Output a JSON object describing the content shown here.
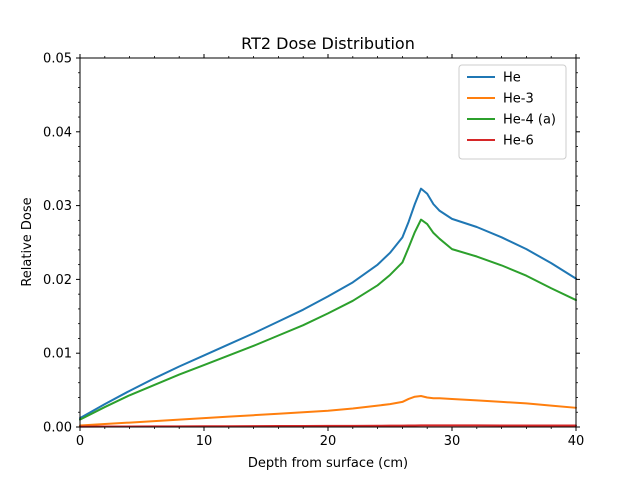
{
  "chart_data": {
    "type": "line",
    "title": "RT2 Dose Distribution",
    "xlabel": "Depth from surface (cm)",
    "ylabel": "Relative Dose",
    "xlim": [
      0,
      40
    ],
    "ylim": [
      0,
      0.05
    ],
    "x_ticks": [
      0,
      10,
      20,
      30,
      40
    ],
    "x_tick_labels": [
      "0",
      "10",
      "20",
      "30",
      "40"
    ],
    "y_ticks": [
      0,
      0.01,
      0.02,
      0.03,
      0.04,
      0.05
    ],
    "y_tick_labels": [
      "0.00",
      "0.01",
      "0.02",
      "0.03",
      "0.04",
      "0.05"
    ],
    "minor_ticks": true,
    "ticks_on_all_sides": true,
    "grid": false,
    "legend_position": "top-right",
    "x": [
      0,
      2,
      4,
      6,
      8,
      10,
      12,
      14,
      16,
      18,
      20,
      22,
      24,
      25,
      26,
      26.5,
      27,
      27.5,
      28,
      28.5,
      29,
      30,
      32,
      34,
      36,
      38,
      40
    ],
    "series": [
      {
        "name": "He",
        "color": "#1f77b4",
        "values": [
          0.0012,
          0.0031,
          0.0049,
          0.0066,
          0.0082,
          0.0097,
          0.0112,
          0.0127,
          0.0143,
          0.0159,
          0.0177,
          0.0196,
          0.022,
          0.0236,
          0.0257,
          0.0278,
          0.0302,
          0.0323,
          0.0316,
          0.0302,
          0.0293,
          0.0282,
          0.0271,
          0.0257,
          0.0241,
          0.0222,
          0.0201
        ]
      },
      {
        "name": "He-3",
        "color": "#ff7f0e",
        "values": [
          0.0002,
          0.0004,
          0.0006,
          0.0008,
          0.001,
          0.0012,
          0.0014,
          0.0016,
          0.0018,
          0.002,
          0.0022,
          0.0025,
          0.0029,
          0.0031,
          0.0034,
          0.0038,
          0.0041,
          0.0042,
          0.004,
          0.0039,
          0.0039,
          0.0038,
          0.0036,
          0.0034,
          0.0032,
          0.0029,
          0.0026
        ]
      },
      {
        "name": "He-4 (a)",
        "color": "#2ca02c",
        "values": [
          0.001,
          0.0027,
          0.0043,
          0.0057,
          0.0071,
          0.0084,
          0.0097,
          0.011,
          0.0124,
          0.0138,
          0.0154,
          0.0171,
          0.0192,
          0.0206,
          0.0223,
          0.0243,
          0.0264,
          0.0281,
          0.0275,
          0.0263,
          0.0255,
          0.0241,
          0.0231,
          0.0219,
          0.0205,
          0.0188,
          0.0172
        ]
      },
      {
        "name": "He-6",
        "color": "#d62728",
        "values": [
          5e-05,
          6e-05,
          7e-05,
          8e-05,
          9e-05,
          0.0001,
          0.00011,
          0.00012,
          0.00013,
          0.00014,
          0.00015,
          0.00016,
          0.00017,
          0.00018,
          0.00019,
          0.0002,
          0.00021,
          0.00022,
          0.00022,
          0.00022,
          0.00022,
          0.00022,
          0.00022,
          0.00021,
          0.00021,
          0.00021,
          0.0002
        ]
      }
    ]
  }
}
